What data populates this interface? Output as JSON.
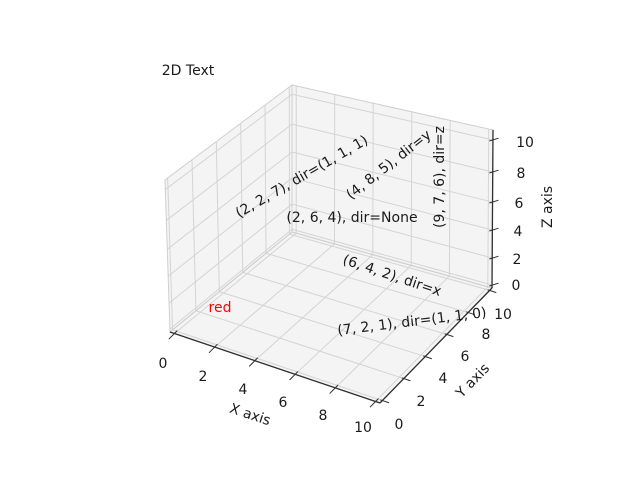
{
  "chart_data": {
    "type": "scatter",
    "projection": "3d",
    "title": "",
    "grid": true,
    "annotations": [
      {
        "text": "(2, 2, 7), dir=(1, 1, 1)",
        "point": [
          2,
          2,
          7
        ],
        "zdir": "(1, 1, 1)",
        "color": "#1a1a1a"
      },
      {
        "text": "(4, 8, 5), dir=y",
        "point": [
          4,
          8,
          5
        ],
        "zdir": "y",
        "color": "#1a1a1a"
      },
      {
        "text": "(9, 7, 6), dir=z",
        "point": [
          9,
          7,
          6
        ],
        "zdir": "z",
        "color": "#1a1a1a"
      },
      {
        "text": "(2, 6, 4), dir=None",
        "point": [
          2,
          6,
          4
        ],
        "zdir": "None",
        "color": "#1a1a1a"
      },
      {
        "text": "(6, 4, 2), dir=x",
        "point": [
          6,
          4,
          2
        ],
        "zdir": "x",
        "color": "#1a1a1a"
      },
      {
        "text": "(7, 2, 1), dir=(1, 1, 0)",
        "point": [
          7,
          2,
          1
        ],
        "zdir": "(1, 1, 0)",
        "color": "#1a1a1a"
      },
      {
        "text": "red",
        "color": "#ff0000"
      },
      {
        "text": "2D Text",
        "color": "#1a1a1a"
      }
    ],
    "axes": {
      "x": {
        "label": "X axis",
        "range": [
          0,
          10
        ],
        "ticks": [
          "0",
          "2",
          "4",
          "6",
          "8",
          "10"
        ]
      },
      "y": {
        "label": "Y axis",
        "range": [
          0,
          10
        ],
        "ticks": [
          "0",
          "2",
          "4",
          "6",
          "8",
          "10"
        ]
      },
      "z": {
        "label": "Z axis",
        "range": [
          0,
          10
        ],
        "ticks": [
          "0",
          "2",
          "4",
          "6",
          "8",
          "10"
        ]
      }
    },
    "colors": {
      "background": "#ffffff",
      "pane": "#f4f4f4",
      "grid": "#d4d4d4",
      "axis_line": "#2f2f2f",
      "text": "#1a1a1a",
      "red_text": "#ff0000"
    }
  }
}
